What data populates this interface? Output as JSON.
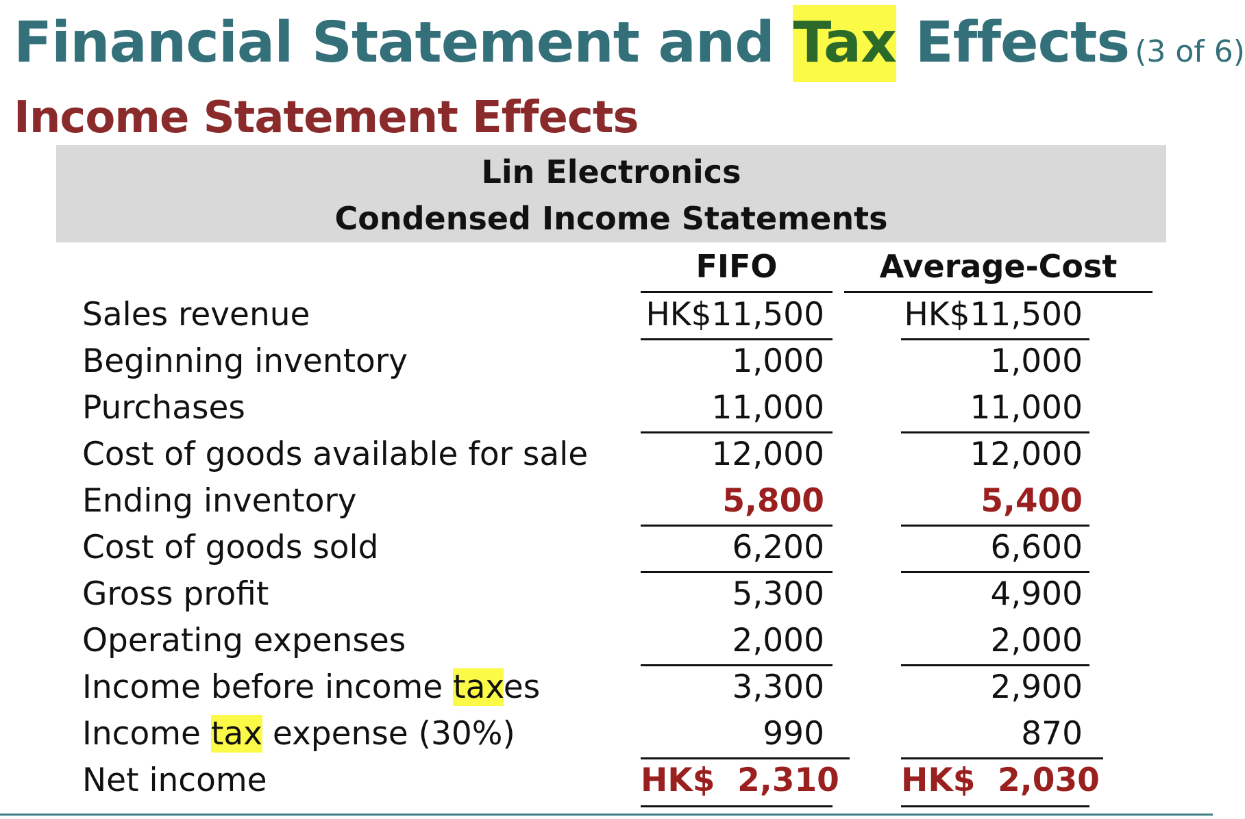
{
  "header": {
    "title_pre": "Financial Statement and ",
    "title_highlight": "Tax",
    "title_post": " Effects",
    "pager": "(3 of 6)",
    "subtitle": "Income Statement Effects"
  },
  "statement": {
    "company": "Lin Electronics",
    "name": "Condensed Income Statements",
    "columns": [
      "FIFO",
      "Average-Cost"
    ],
    "rows": [
      {
        "label": "Sales revenue",
        "fifo": "HK$11,500",
        "avg": "HK$11,500"
      },
      {
        "label": "Beginning inventory",
        "fifo": "1,000",
        "avg": "1,000"
      },
      {
        "label": "Purchases",
        "fifo": "11,000",
        "avg": "11,000"
      },
      {
        "label": "Cost of goods available for sale",
        "fifo": "12,000",
        "avg": "12,000"
      },
      {
        "label": "Ending inventory",
        "fifo": "5,800",
        "avg": "5,400"
      },
      {
        "label": "Cost of goods sold",
        "fifo": "6,200",
        "avg": "6,600"
      },
      {
        "label": "Gross profit",
        "fifo": "5,300",
        "avg": "4,900"
      },
      {
        "label": "Operating expenses",
        "fifo": "2,000",
        "avg": "2,000"
      },
      {
        "label_pre": "Income before income ",
        "label_highlight": "tax",
        "label_post": "es",
        "fifo": "3,300",
        "avg": "2,900"
      },
      {
        "label_pre": "Income ",
        "label_highlight": "tax",
        "label_post": " expense (30%)",
        "fifo": "990",
        "avg": "870"
      },
      {
        "label": "Net income",
        "fifo": "HK$  2,310",
        "avg": "HK$  2,030"
      }
    ]
  },
  "colors": {
    "title": "#33707a",
    "subtitle": "#8a2a2a",
    "emphasis": "#9a1f1f",
    "highlight": "#fbfa46"
  }
}
